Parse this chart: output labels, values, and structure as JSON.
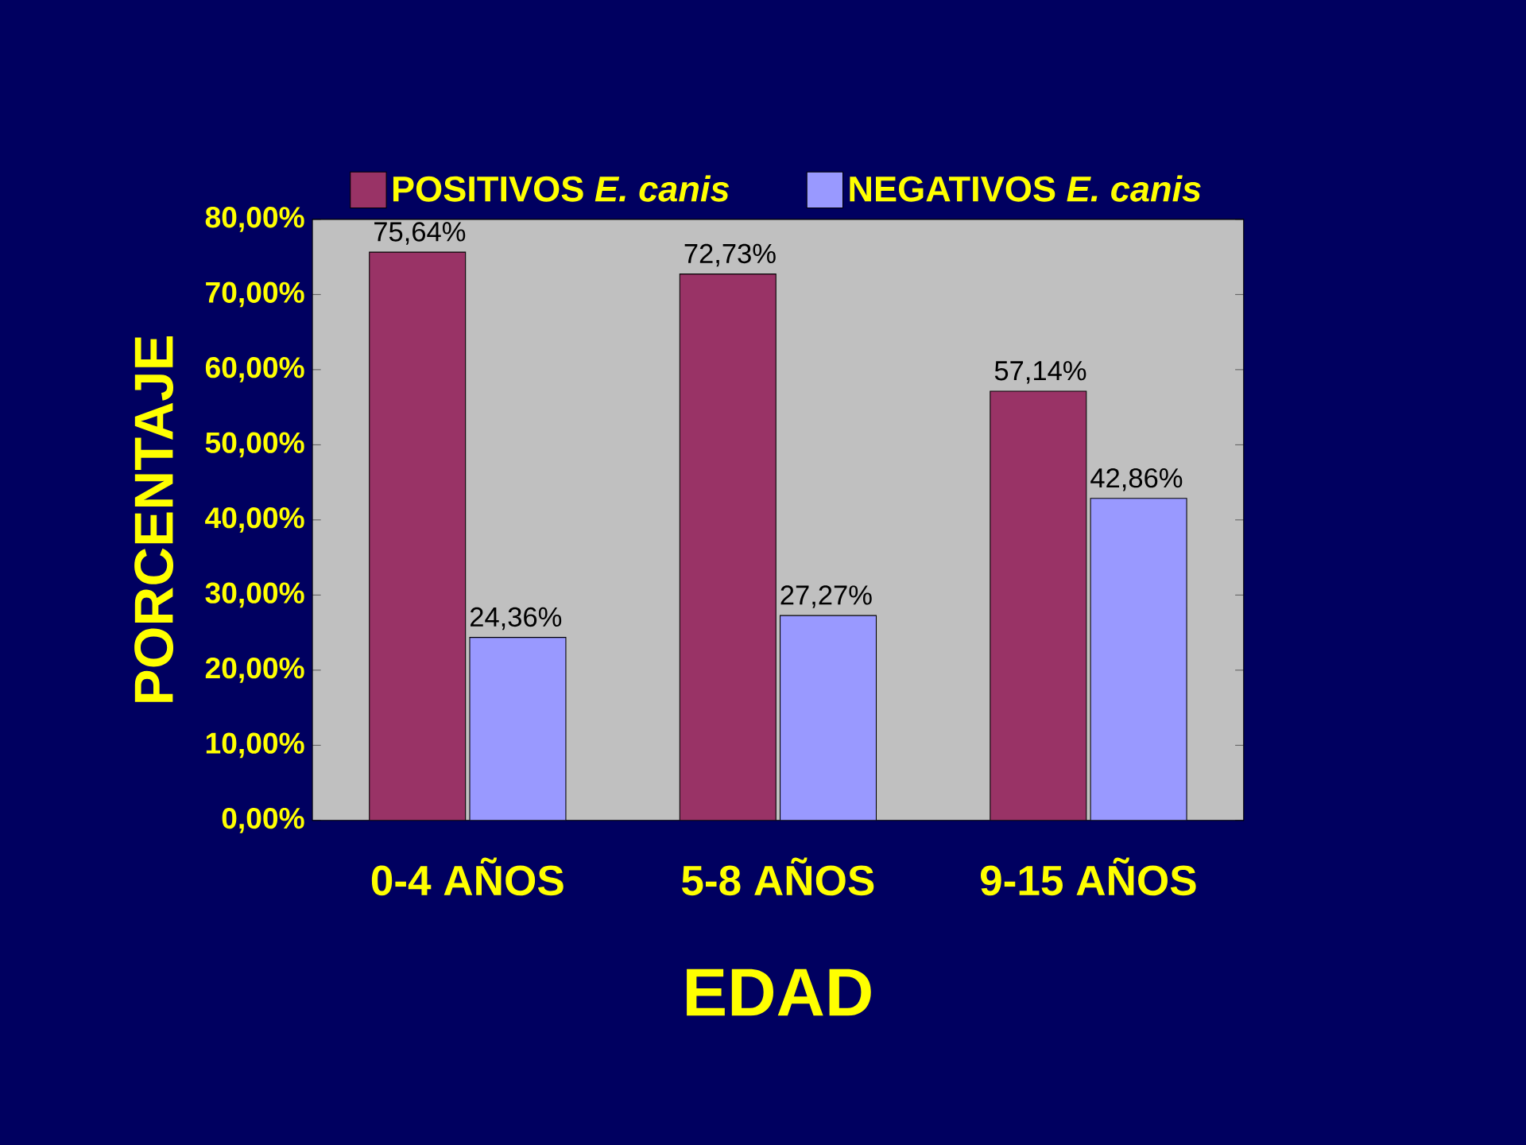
{
  "chart_data": {
    "type": "bar",
    "categories": [
      "0-4 AÑOS",
      "5-8 AÑOS",
      "9-15 AÑOS"
    ],
    "series": [
      {
        "name": "POSITIVOS *E. canis*",
        "color": "#993366",
        "values": [
          75.64,
          72.73,
          57.14
        ],
        "value_labels": [
          "75,64%",
          "72,73%",
          "57,14%"
        ]
      },
      {
        "name": "NEGATIVOS *E. canis*",
        "color": "#9999ff",
        "values": [
          24.36,
          27.27,
          42.86
        ],
        "value_labels": [
          "24,36%",
          "27,27%",
          "42,86%"
        ]
      }
    ],
    "xlabel": "EDAD",
    "ylabel": "PORCENTAJE",
    "ylim": [
      0,
      80
    ],
    "yticks": [
      {
        "value": 0,
        "label": "0,00%"
      },
      {
        "value": 10,
        "label": "10,00%"
      },
      {
        "value": 20,
        "label": "20,00%"
      },
      {
        "value": 30,
        "label": "30,00%"
      },
      {
        "value": 40,
        "label": "40,00%"
      },
      {
        "value": 50,
        "label": "50,00%"
      },
      {
        "value": 60,
        "label": "60,00%"
      },
      {
        "value": 70,
        "label": "70,00%"
      },
      {
        "value": 80,
        "label": "80,00%"
      }
    ],
    "legend": "top"
  }
}
